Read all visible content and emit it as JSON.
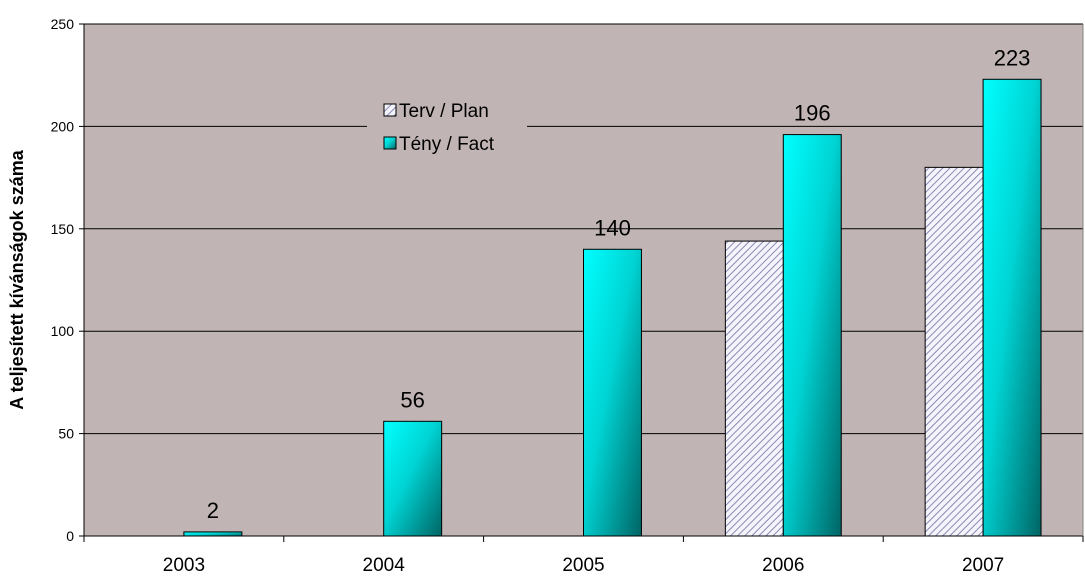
{
  "chart_data": {
    "type": "bar",
    "categories": [
      "2003",
      "2004",
      "2005",
      "2006",
      "2007"
    ],
    "series": [
      {
        "name": "Terv / Plan",
        "values": [
          0,
          0,
          0,
          144,
          180
        ],
        "color": "#c8c8e0",
        "pattern": "diagonal-hatch"
      },
      {
        "name": "Tény / Fact",
        "values": [
          2,
          56,
          140,
          196,
          223
        ],
        "color": "#00ffff",
        "gradient_end": "#006464"
      }
    ],
    "data_labels": [
      "2",
      "56",
      "140",
      "196",
      "223"
    ],
    "ylabel": "A teljesített kívánságok száma",
    "xlabel": "",
    "title": "",
    "ylim": [
      0,
      250
    ],
    "yticks": [
      "0",
      "50",
      "100",
      "150",
      "200",
      "250"
    ],
    "grid": true,
    "legend_position": "top-center",
    "colors": {
      "plot_background": "#c0b4b4",
      "gridline": "#000000"
    }
  }
}
